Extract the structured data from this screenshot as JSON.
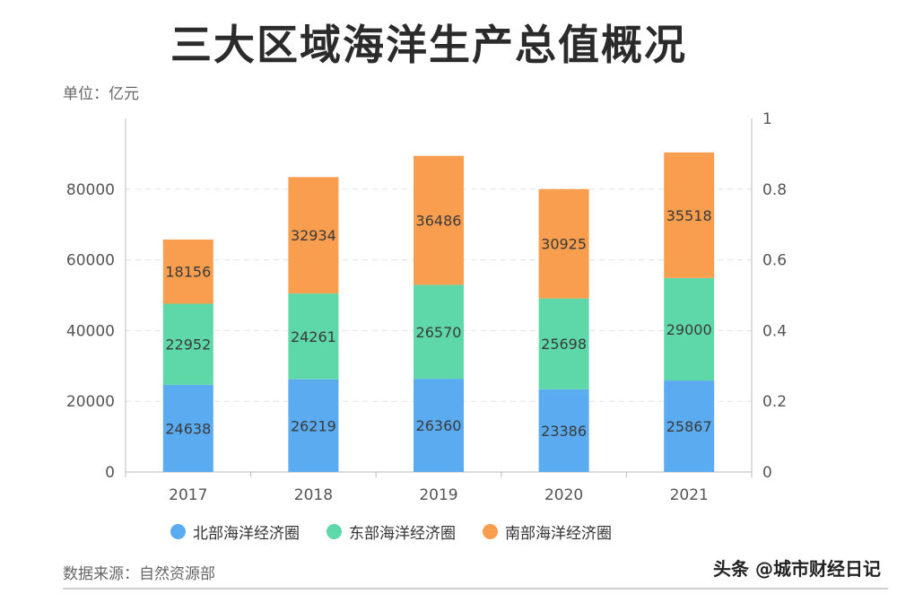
{
  "title": "三大区域海洋生产总值概况",
  "unit_label": "单位：亿元",
  "source_label": "数据来源：自然资源部",
  "watermark": "头条 @城市财经日记",
  "colors": {
    "north": "#5aabf0",
    "east": "#5ed8a8",
    "south": "#f99e4e",
    "grid": "#e3e3e3",
    "axis": "#bbbbbb"
  },
  "chart_data": {
    "type": "bar",
    "stacked": true,
    "categories": [
      "2017",
      "2018",
      "2019",
      "2020",
      "2021"
    ],
    "series": [
      {
        "name": "北部海洋经济圈",
        "color_key": "north",
        "values": [
          24638,
          26219,
          26360,
          23386,
          25867
        ]
      },
      {
        "name": "东部海洋经济圈",
        "color_key": "east",
        "values": [
          22952,
          24261,
          26570,
          25698,
          29000
        ]
      },
      {
        "name": "南部海洋经济圈",
        "color_key": "south",
        "values": [
          18156,
          32934,
          36486,
          30925,
          35518
        ]
      }
    ],
    "ylim": [
      0,
      100000
    ],
    "yticks": [
      "0",
      "20000",
      "40000",
      "60000",
      "80000"
    ],
    "y2lim": [
      0,
      1
    ],
    "y2ticks": [
      "0",
      "0.2",
      "0.4",
      "0.6",
      "0.8",
      "1"
    ],
    "grid": true,
    "legend_position": "bottom"
  }
}
